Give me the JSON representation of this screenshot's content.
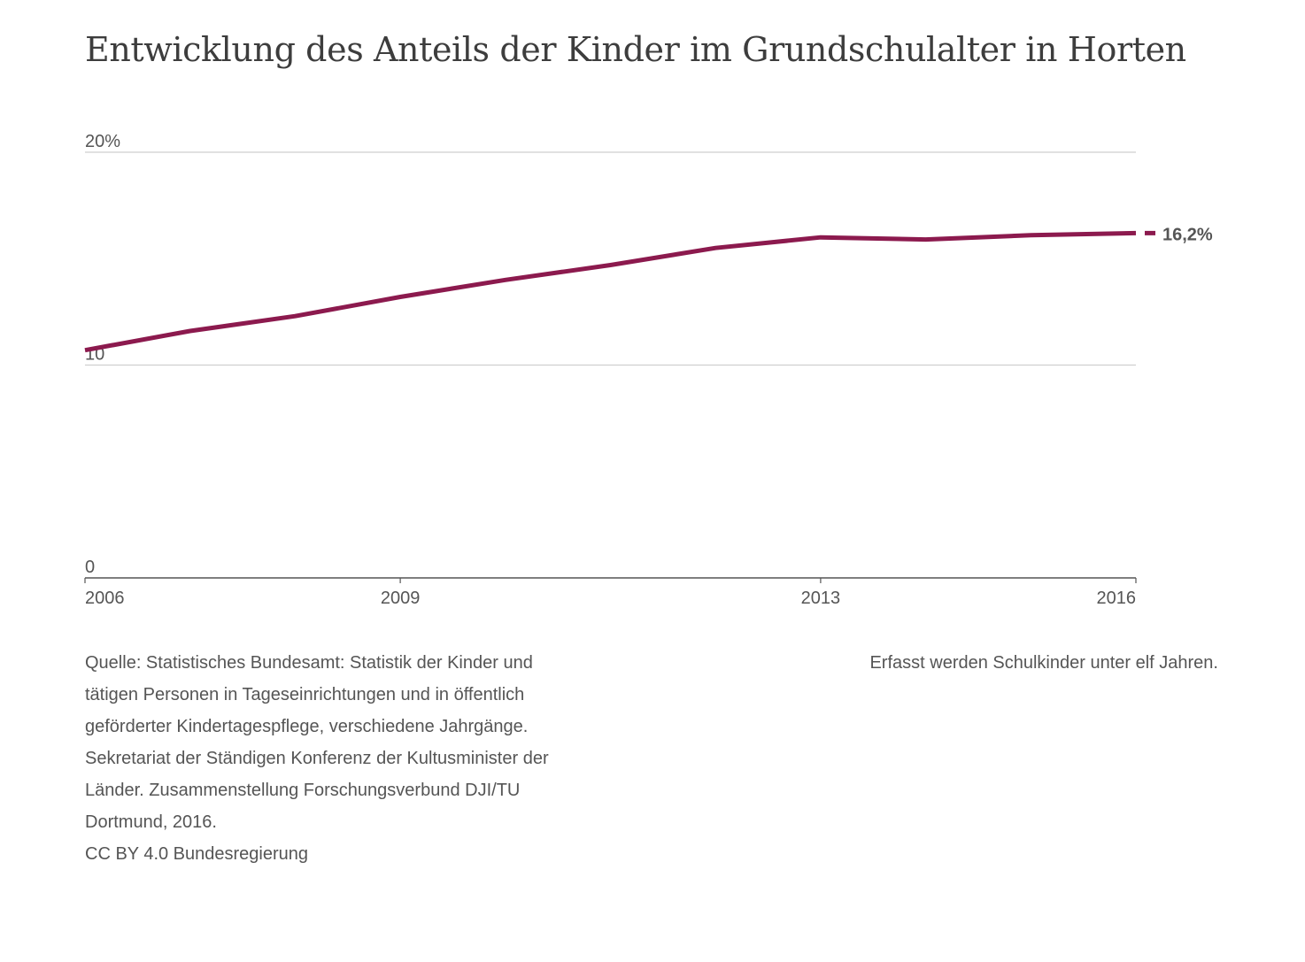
{
  "chart_data": {
    "type": "line",
    "title": "Entwicklung des Anteils der Kinder im Grundschulalter in Horten",
    "x": [
      2006,
      2007,
      2008,
      2009,
      2010,
      2011,
      2012,
      2013,
      2014,
      2015,
      2016
    ],
    "series": [
      {
        "values": [
          10.7,
          11.6,
          12.3,
          13.2,
          14.0,
          14.7,
          15.5,
          16.0,
          15.9,
          16.1,
          16.2
        ],
        "color": "#8c1a4e"
      }
    ],
    "xlim": [
      2006,
      2016
    ],
    "ylim": [
      0,
      20
    ],
    "x_ticks": [
      "2006",
      "2009",
      "2013",
      "2016"
    ],
    "x_tick_values": [
      2006,
      2009,
      2013,
      2016
    ],
    "y_ticks": [
      "0",
      "10",
      "20%"
    ],
    "y_tick_values": [
      0,
      10,
      20
    ],
    "end_label": "16,2%",
    "grid": true,
    "source_lines": [
      "Quelle: Statistisches Bundesamt: Statistik der Kinder und",
      "tätigen Personen in Tageseinrichtungen und in öffentlich",
      "geförderter Kindertagespflege, verschiedene Jahrgänge.",
      "Sekretariat der Ständigen Konferenz der Kultusminister der",
      "Länder. Zusammenstellung Forschungsverbund DJI/TU",
      "Dortmund, 2016.",
      "CC BY 4.0 Bundesregierung"
    ],
    "note": "Erfasst werden Schulkinder unter elf Jahren."
  }
}
